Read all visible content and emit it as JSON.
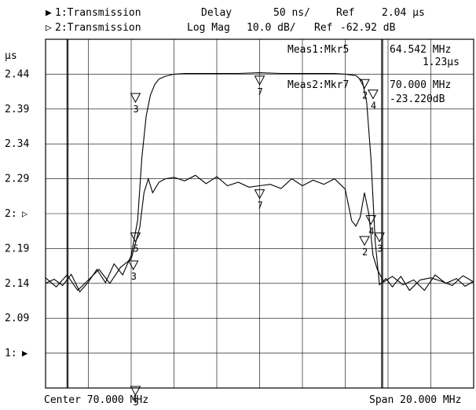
{
  "header": {
    "ch1_label": "1:Transmission",
    "ch1_format": "Delay",
    "ch1_scale": "50 ns/",
    "ch1_ref": "Ref",
    "ch1_ref_value": "2.04 μs",
    "ch2_label": "2:Transmission",
    "ch2_format": "Log Mag",
    "ch2_scale": "10.0 dB/",
    "ch2_ref": "Ref",
    "ch2_ref_value": "-62.92 dB"
  },
  "markers": {
    "meas1_label": "Meas1:Mkr5",
    "meas1_freq": "64.542 MHz",
    "meas1_value": "1.23μs",
    "meas2_label": "Meas2:Mkr7",
    "meas2_freq": "70.000 MHz",
    "meas2_value": "-23.220dB"
  },
  "footer": {
    "center": "Center 70.000 MHz",
    "span": "Span 20.000 MHz"
  },
  "chart_data": {
    "type": "line",
    "grid": true,
    "x_unit": "MHz",
    "xlim": [
      60,
      80
    ],
    "ylim": [
      1.99,
      2.49
    ],
    "y_unit_label": "μs",
    "y_tick_labels": [
      "2.44",
      "2.39",
      "2.34",
      "2.29",
      "2:",
      "2.19",
      "2.14",
      "2.09",
      "1:"
    ],
    "y_tick_values": [
      2.44,
      2.39,
      2.34,
      2.29,
      2.24,
      2.19,
      2.14,
      2.09,
      2.04
    ],
    "ref_markers": [
      {
        "label": "2:",
        "value": 2.24,
        "symbol": "▷"
      },
      {
        "label": "1:",
        "value": 2.04,
        "symbol": "▶"
      }
    ],
    "series": [
      {
        "channel": "1",
        "quantity": "Delay",
        "x": [
          60.0,
          60.4,
          60.8,
          61.2,
          61.6,
          62.0,
          62.4,
          62.8,
          63.2,
          63.6,
          64.0,
          64.3,
          64.5,
          64.7,
          64.9,
          65.1,
          65.3,
          65.6,
          66.0,
          66.5,
          67.0,
          68.0,
          69.0,
          70.0,
          71.0,
          72.0,
          73.0,
          73.5,
          74.0,
          74.5,
          74.8,
          75.0,
          75.2,
          75.4,
          75.6,
          75.9,
          76.2,
          76.6,
          77.0,
          77.5,
          78.0,
          78.5,
          79.0,
          79.5,
          80.0
        ],
        "y": [
          2.14,
          2.146,
          2.137,
          2.153,
          2.128,
          2.142,
          2.16,
          2.141,
          2.168,
          2.152,
          2.18,
          2.23,
          2.32,
          2.38,
          2.41,
          2.425,
          2.433,
          2.437,
          2.44,
          2.441,
          2.441,
          2.441,
          2.441,
          2.442,
          2.441,
          2.441,
          2.441,
          2.441,
          2.44,
          2.438,
          2.43,
          2.4,
          2.32,
          2.2,
          2.138,
          2.147,
          2.135,
          2.15,
          2.13,
          2.145,
          2.148,
          2.143,
          2.137,
          2.151,
          2.142
        ]
      },
      {
        "channel": "2",
        "quantity": "Log Mag",
        "x": [
          60.0,
          60.5,
          61.0,
          61.5,
          62.0,
          62.5,
          63.0,
          63.5,
          64.0,
          64.4,
          64.6,
          64.8,
          65.0,
          65.3,
          65.6,
          66.0,
          66.5,
          67.0,
          67.5,
          68.0,
          68.5,
          69.0,
          69.5,
          70.0,
          70.5,
          71.0,
          71.5,
          72.0,
          72.5,
          73.0,
          73.5,
          74.0,
          74.3,
          74.5,
          74.7,
          74.9,
          75.1,
          75.3,
          75.5,
          75.8,
          76.2,
          76.7,
          77.2,
          77.7,
          78.2,
          78.7,
          79.2,
          79.6,
          80.0
        ],
        "y": [
          2.148,
          2.135,
          2.152,
          2.13,
          2.145,
          2.16,
          2.14,
          2.163,
          2.175,
          2.22,
          2.27,
          2.29,
          2.27,
          2.285,
          2.29,
          2.292,
          2.287,
          2.295,
          2.283,
          2.293,
          2.28,
          2.285,
          2.278,
          2.28,
          2.282,
          2.276,
          2.29,
          2.28,
          2.288,
          2.282,
          2.29,
          2.275,
          2.23,
          2.222,
          2.235,
          2.27,
          2.24,
          2.18,
          2.16,
          2.142,
          2.15,
          2.138,
          2.145,
          2.13,
          2.152,
          2.14,
          2.147,
          2.136,
          2.143
        ]
      }
    ],
    "marker_labels": [
      {
        "text": "7",
        "x": 70.0,
        "y": 2.435,
        "at_top": true
      },
      {
        "text": "3",
        "x": 64.2,
        "y": 2.41
      },
      {
        "text": "2",
        "x": 74.9,
        "y": 2.43
      },
      {
        "text": "4",
        "x": 75.3,
        "y": 2.415
      },
      {
        "text": "7",
        "x": 70.0,
        "y": 2.272
      },
      {
        "text": "5",
        "x": 64.2,
        "y": 2.21
      },
      {
        "text": "3",
        "x": 64.1,
        "y": 2.17
      },
      {
        "text": "2",
        "x": 74.9,
        "y": 2.205
      },
      {
        "text": "4",
        "x": 75.2,
        "y": 2.235
      },
      {
        "text": "3",
        "x": 75.6,
        "y": 2.21
      },
      {
        "text": "5",
        "x": 64.2,
        "y": 1.99
      }
    ]
  }
}
